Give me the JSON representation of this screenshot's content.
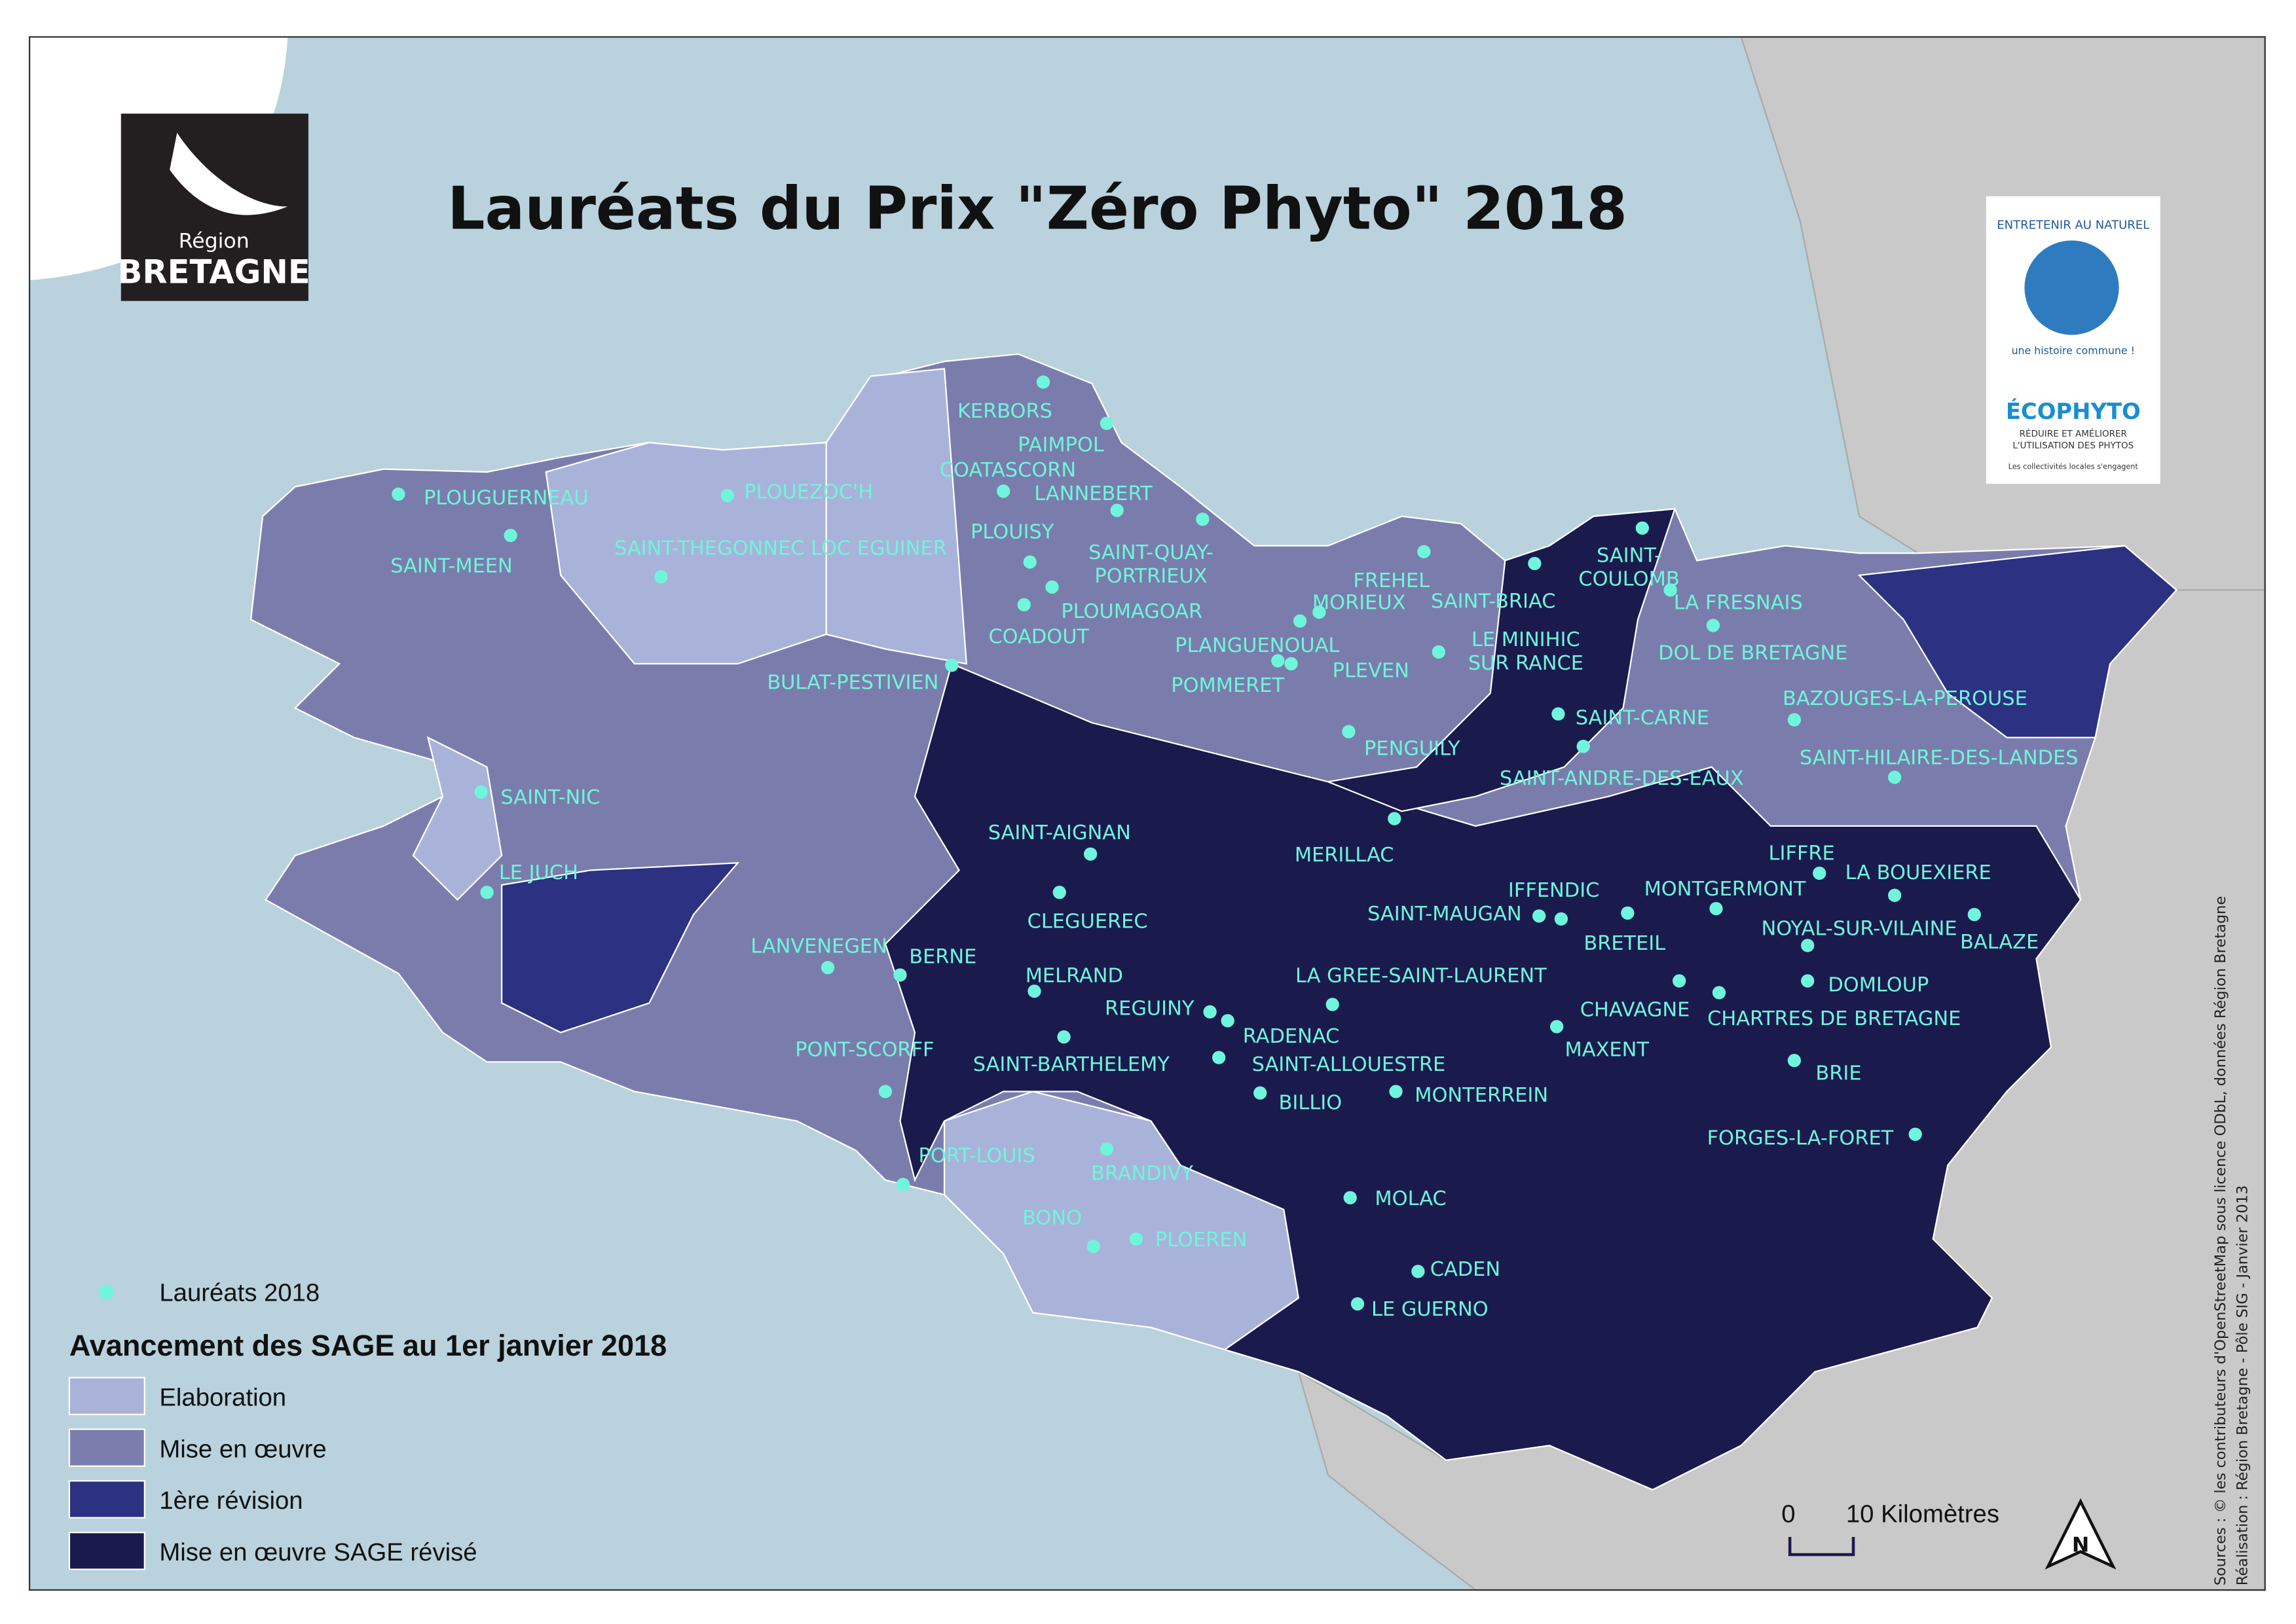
{
  "title": "Lauréats du Prix \"Zéro Phyto\" 2018",
  "logo_region": {
    "line1": "Région",
    "line2": "BRETAGNE"
  },
  "logo_partners": {
    "arc_top": "ENTRETENIR AU NATUREL",
    "arc_bottom": "une histoire commune !",
    "ecophyto": "ÉCOPHYTO",
    "ecophyto_sub1": "RÉDUIRE ET AMÉLIORER",
    "ecophyto_sub2": "L'UTILISATION DES PHYTOS",
    "ecophyto_foot": "Les collectivités locales s'engagent"
  },
  "laureates": [
    [
      "KERBORS"
    ],
    [
      "PAIMPOL"
    ],
    [
      "COATASCORN"
    ],
    [
      "LANNEBERT"
    ],
    [
      "PLOUGUERNEAU"
    ],
    [
      "PLOUEZOC'H"
    ],
    [
      "SAINT-MEEN"
    ],
    [
      "SAINT-THEGONNEC LOC EGUINER"
    ],
    [
      "PLOUISY"
    ],
    [
      "SAINT-QUAY-",
      "PORTRIEUX"
    ],
    [
      "PLOUMAGOAR"
    ],
    [
      "COADOUT"
    ],
    [
      "BULAT-PESTIVIEN"
    ],
    [
      "FREHEL"
    ],
    [
      "MORIEUX"
    ],
    [
      "PLANGUENOUAL"
    ],
    [
      "SAINT-BRIAC"
    ],
    [
      "SAINT-",
      "COULOMB"
    ],
    [
      "LA FRESNAIS"
    ],
    [
      "PLEVEN"
    ],
    [
      "LE MINIHIC",
      "SUR RANCE"
    ],
    [
      "POMMERET"
    ],
    [
      "DOL DE BRETAGNE"
    ],
    [
      "BAZOUGES-LA-PEROUSE"
    ],
    [
      "SAINT-CARNE"
    ],
    [
      "PENGUILY"
    ],
    [
      "SAINT-ANDRE-DES-EAUX"
    ],
    [
      "SAINT-HILAIRE-DES-LANDES"
    ],
    [
      "SAINT-NIC"
    ],
    [
      "MERILLAC"
    ],
    [
      "SAINT-AIGNAN"
    ],
    [
      "LIFFRE"
    ],
    [
      "LA BOUEXIERE"
    ],
    [
      "LE JUCH"
    ],
    [
      "CLEGUEREC"
    ],
    [
      "IFFENDIC"
    ],
    [
      "MONTGERMONT"
    ],
    [
      "SAINT-MAUGAN"
    ],
    [
      "BRETEIL"
    ],
    [
      "NOYAL-SUR-VILAINE"
    ],
    [
      "BALAZE"
    ],
    [
      "LANVENEGEN"
    ],
    [
      "BERNE"
    ],
    [
      "MELRAND"
    ],
    [
      "LA GREE-SAINT-LAURENT"
    ],
    [
      "CHAVAGNE"
    ],
    [
      "DOMLOUP"
    ],
    [
      "REGUINY"
    ],
    [
      "CHARTRES DE BRETAGNE"
    ],
    [
      "RADENAC"
    ],
    [
      "MAXENT"
    ],
    [
      "SAINT-BARTHELEMY"
    ],
    [
      "PONT-SCORFF"
    ],
    [
      "SAINT-ALLOUESTRE"
    ],
    [
      "BRIE"
    ],
    [
      "BILLIO"
    ],
    [
      "MONTERREIN"
    ],
    [
      "FORGES-LA-FORET"
    ],
    [
      "PORT-LOUIS"
    ],
    [
      "BRANDIVY"
    ],
    [
      "MOLAC"
    ],
    [
      "BONO"
    ],
    [
      "PLOEREN"
    ],
    [
      "CADEN"
    ],
    [
      "LE GUERNO"
    ]
  ],
  "legend": {
    "laureates_label": "Lauréats 2018",
    "title": "Avancement des SAGE au 1er janvier 2018",
    "items": [
      {
        "label": "Elaboration",
        "color": "#a9b3da"
      },
      {
        "label": "Mise en œuvre",
        "color": "#7a7dac"
      },
      {
        "label": "1ère révision",
        "color": "#2c3181"
      },
      {
        "label": "Mise en œuvre SAGE révisé",
        "color": "#1b1a4d"
      }
    ]
  },
  "scale": {
    "zero": "0",
    "label": "10 Kilomètres"
  },
  "north": "N",
  "sources": [
    "Sources : © les contributeurs d'OpenStreetMap sous licence ODbL, données Région Bretagne",
    "Réalisation : Région Bretagne - Pôle SIG - Janvier 2013"
  ]
}
